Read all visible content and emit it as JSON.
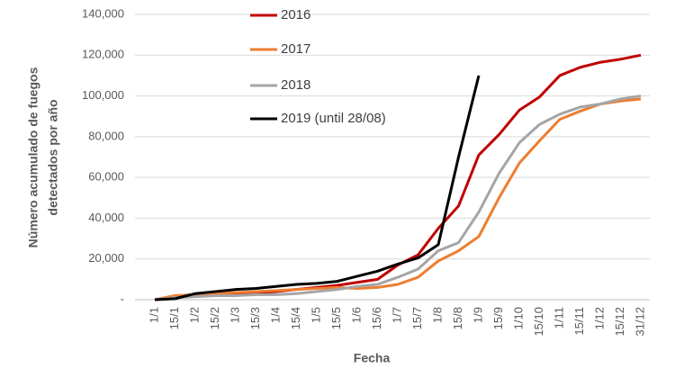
{
  "chart_data": {
    "type": "line",
    "x_label": "Fecha",
    "y_label": [
      "Número acumulado de fuegos",
      "detectados por año"
    ],
    "categories": [
      "1/1",
      "15/1",
      "1/2",
      "15/2",
      "1/3",
      "15/3",
      "1/4",
      "15/4",
      "1/5",
      "15/5",
      "1/6",
      "15/6",
      "1/7",
      "15/7",
      "1/8",
      "15/8",
      "1/9",
      "15/9",
      "1/10",
      "15/10",
      "1/11",
      "15/11",
      "1/12",
      "15/12",
      "31/12"
    ],
    "series": [
      {
        "name": "2016",
        "color": "#c00000",
        "values": [
          0,
          1000,
          2000,
          2500,
          3000,
          3500,
          4000,
          5000,
          6000,
          7000,
          8500,
          10000,
          17000,
          22000,
          35000,
          46000,
          71000,
          81000,
          93000,
          99500,
          110000,
          114000,
          116500,
          118000,
          120000
        ]
      },
      {
        "name": "2017",
        "color": "#ed7d31",
        "values": [
          0,
          2000,
          2500,
          3000,
          3500,
          4000,
          4500,
          5000,
          5500,
          6000,
          5500,
          6000,
          7500,
          11000,
          19000,
          24000,
          31000,
          50000,
          67000,
          78000,
          88500,
          92500,
          96000,
          97500,
          98500
        ]
      },
      {
        "name": "2018",
        "color": "#a5a5a5",
        "values": [
          0,
          1000,
          1500,
          2000,
          2000,
          2500,
          2500,
          3000,
          4000,
          5000,
          6500,
          7500,
          11000,
          15000,
          24000,
          28000,
          43000,
          62000,
          77000,
          86000,
          91000,
          94500,
          96000,
          98500,
          100000
        ]
      },
      {
        "name": "2019 (until 28/08)",
        "color": "#000000",
        "values": [
          0,
          500,
          3000,
          4000,
          5000,
          5500,
          6500,
          7500,
          8000,
          9000,
          11500,
          14000,
          17500,
          20500,
          27000,
          70000,
          110000,
          null,
          null,
          null,
          null,
          null,
          null,
          null,
          null
        ]
      }
    ],
    "ylim": [
      0,
      140000
    ],
    "yticks": [
      {
        "value": 0,
        "label": "-"
      },
      {
        "value": 20000,
        "label": "20,000"
      },
      {
        "value": 40000,
        "label": "40,000"
      },
      {
        "value": 60000,
        "label": "60,000"
      },
      {
        "value": 80000,
        "label": "80,000"
      },
      {
        "value": 100000,
        "label": "100,000"
      },
      {
        "value": 120000,
        "label": "120,000"
      },
      {
        "value": 140000,
        "label": "140,000"
      }
    ],
    "grid": true
  }
}
